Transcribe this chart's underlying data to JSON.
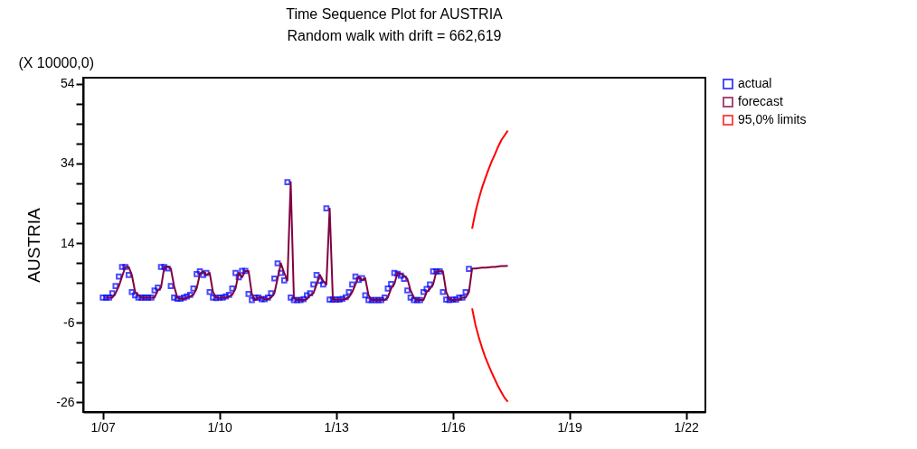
{
  "chart_data": {
    "type": "line",
    "title": "Time Sequence Plot for AUSTRIA",
    "subtitle": "Random walk with drift = 662,619",
    "ylabel": "AUSTRIA",
    "annotations": [
      "(X 10000,0)"
    ],
    "xlim": [
      "2006-07",
      "2022-07"
    ],
    "xticks": [
      {
        "value": "2007-01",
        "label": "1/07"
      },
      {
        "value": "2010-01",
        "label": "1/10"
      },
      {
        "value": "2013-01",
        "label": "1/13"
      },
      {
        "value": "2016-01",
        "label": "1/16"
      },
      {
        "value": "2019-01",
        "label": "1/19"
      },
      {
        "value": "2022-01",
        "label": "1/22"
      }
    ],
    "ylim": [
      -28.4,
      55.5
    ],
    "yticks": [
      -26,
      {
        "value": -21,
        "label": null
      },
      {
        "value": -16,
        "label": null
      },
      {
        "value": -11,
        "label": null
      },
      -6,
      {
        "value": -1,
        "label": null
      },
      {
        "value": 4,
        "label": null
      },
      {
        "value": 9,
        "label": null
      },
      14,
      {
        "value": 19,
        "label": null
      },
      {
        "value": 24,
        "label": null
      },
      {
        "value": 29,
        "label": null
      },
      34,
      {
        "value": 39,
        "label": null
      },
      {
        "value": 44,
        "label": null
      },
      {
        "value": 49,
        "label": null
      },
      54
    ],
    "grid": false,
    "legend": "top right",
    "series": [
      {
        "name": "actual",
        "type": "scatter",
        "marker": "square",
        "color": "#0000ff",
        "x": [
          "2007-01",
          "2007-02",
          "2007-03",
          "2007-04",
          "2007-05",
          "2007-06",
          "2007-07",
          "2007-08",
          "2007-09",
          "2007-10",
          "2007-11",
          "2007-12",
          "2008-01",
          "2008-02",
          "2008-03",
          "2008-04",
          "2008-05",
          "2008-06",
          "2008-07",
          "2008-08",
          "2008-09",
          "2008-10",
          "2008-11",
          "2008-12",
          "2009-01",
          "2009-02",
          "2009-03",
          "2009-04",
          "2009-05",
          "2009-06",
          "2009-07",
          "2009-08",
          "2009-09",
          "2009-10",
          "2009-11",
          "2009-12",
          "2010-01",
          "2010-02",
          "2010-03",
          "2010-04",
          "2010-05",
          "2010-06",
          "2010-07",
          "2010-08",
          "2010-09",
          "2010-10",
          "2010-11",
          "2010-12",
          "2011-01",
          "2011-02",
          "2011-03",
          "2011-04",
          "2011-05",
          "2011-06",
          "2011-07",
          "2011-08",
          "2011-09",
          "2011-10",
          "2011-11",
          "2011-12",
          "2012-01",
          "2012-02",
          "2012-03",
          "2012-04",
          "2012-05",
          "2012-06",
          "2012-07",
          "2012-08",
          "2012-09",
          "2012-10",
          "2012-11",
          "2012-12",
          "2013-01",
          "2013-02",
          "2013-03",
          "2013-04",
          "2013-05",
          "2013-06",
          "2013-07",
          "2013-08",
          "2013-09",
          "2013-10",
          "2013-11",
          "2013-12",
          "2014-01",
          "2014-02",
          "2014-03",
          "2014-04",
          "2014-05",
          "2014-06",
          "2014-07",
          "2014-08",
          "2014-09",
          "2014-10",
          "2014-11",
          "2014-12",
          "2015-01",
          "2015-02",
          "2015-03",
          "2015-04",
          "2015-05",
          "2015-06",
          "2015-07",
          "2015-08",
          "2015-09",
          "2015-10",
          "2015-11",
          "2015-12",
          "2016-01",
          "2016-02",
          "2016-03",
          "2016-04",
          "2016-05",
          "2016-06"
        ],
        "values": [
          0.3,
          0.3,
          0.3,
          1.4,
          3.2,
          5.6,
          8.0,
          8.0,
          6.0,
          1.7,
          0.9,
          0.3,
          0.3,
          0.3,
          0.3,
          0.3,
          2.1,
          2.8,
          8.0,
          8.0,
          7.6,
          3.2,
          0.3,
          0.0,
          0.0,
          0.3,
          0.6,
          1.0,
          2.6,
          6.2,
          6.9,
          6.0,
          6.5,
          1.7,
          0.3,
          0.2,
          0.3,
          0.3,
          0.6,
          1.0,
          2.6,
          6.5,
          5.4,
          7.0,
          7.0,
          1.2,
          -0.3,
          0.3,
          0.3,
          -0.1,
          -0.1,
          0.3,
          1.4,
          5.1,
          8.9,
          6.5,
          4.6,
          29.3,
          0.3,
          -0.3,
          -0.3,
          -0.3,
          -0.1,
          0.9,
          1.4,
          3.6,
          6.0,
          4.5,
          3.6,
          22.7,
          -0.2,
          -0.2,
          -0.2,
          -0.2,
          0.0,
          0.4,
          1.7,
          3.6,
          5.6,
          4.7,
          5.2,
          0.9,
          -0.3,
          -0.3,
          -0.3,
          -0.3,
          -0.3,
          0.3,
          2.6,
          3.7,
          6.5,
          6.3,
          5.8,
          5.0,
          2.1,
          0.3,
          -0.3,
          -0.3,
          -0.3,
          1.7,
          2.5,
          3.6,
          6.9,
          6.9,
          6.9,
          1.7,
          -0.2,
          -0.3,
          -0.2,
          -0.2,
          0.3,
          0.3,
          1.7,
          7.5
        ]
      },
      {
        "name": "forecast",
        "line_style": "solid",
        "color": "#800040",
        "x": [
          "2007-02",
          "2007-03",
          "2007-04",
          "2007-05",
          "2007-06",
          "2007-07",
          "2007-08",
          "2007-09",
          "2007-10",
          "2007-11",
          "2007-12",
          "2008-01",
          "2008-02",
          "2008-03",
          "2008-04",
          "2008-05",
          "2008-06",
          "2008-07",
          "2008-08",
          "2008-09",
          "2008-10",
          "2008-11",
          "2008-12",
          "2009-01",
          "2009-02",
          "2009-03",
          "2009-04",
          "2009-05",
          "2009-06",
          "2009-07",
          "2009-08",
          "2009-09",
          "2009-10",
          "2009-11",
          "2009-12",
          "2010-01",
          "2010-02",
          "2010-03",
          "2010-04",
          "2010-05",
          "2010-06",
          "2010-07",
          "2010-08",
          "2010-09",
          "2010-10",
          "2010-11",
          "2010-12",
          "2011-01",
          "2011-02",
          "2011-03",
          "2011-04",
          "2011-05",
          "2011-06",
          "2011-07",
          "2011-08",
          "2011-09",
          "2011-10",
          "2011-11",
          "2011-12",
          "2012-01",
          "2012-02",
          "2012-03",
          "2012-04",
          "2012-05",
          "2012-06",
          "2012-07",
          "2012-08",
          "2012-09",
          "2012-10",
          "2012-11",
          "2012-12",
          "2013-01",
          "2013-02",
          "2013-03",
          "2013-04",
          "2013-05",
          "2013-06",
          "2013-07",
          "2013-08",
          "2013-09",
          "2013-10",
          "2013-11",
          "2013-12",
          "2014-01",
          "2014-02",
          "2014-03",
          "2014-04",
          "2014-05",
          "2014-06",
          "2014-07",
          "2014-08",
          "2014-09",
          "2014-10",
          "2014-11",
          "2014-12",
          "2015-01",
          "2015-02",
          "2015-03",
          "2015-04",
          "2015-05",
          "2015-06",
          "2015-07",
          "2015-08",
          "2015-09",
          "2015-10",
          "2015-11",
          "2015-12",
          "2016-01",
          "2016-02",
          "2016-03",
          "2016-04",
          "2016-05",
          "2016-06",
          "2016-07",
          "2016-08",
          "2016-09",
          "2016-10",
          "2016-11",
          "2016-12",
          "2017-01",
          "2017-02",
          "2017-03",
          "2017-04",
          "2017-05",
          "2017-06"
        ],
        "values": [
          0.3,
          0.3,
          0.3,
          1.4,
          3.2,
          5.6,
          8.0,
          8.0,
          6.0,
          1.7,
          0.9,
          0.3,
          0.3,
          0.3,
          0.3,
          0.3,
          2.1,
          2.8,
          8.0,
          8.0,
          7.6,
          3.2,
          0.3,
          0.0,
          0.0,
          0.3,
          0.6,
          1.0,
          2.6,
          6.2,
          6.9,
          6.0,
          6.5,
          1.7,
          0.3,
          0.2,
          0.3,
          0.3,
          0.6,
          1.0,
          2.6,
          6.5,
          5.4,
          7.0,
          7.0,
          1.2,
          -0.3,
          0.3,
          0.3,
          -0.1,
          -0.1,
          0.3,
          1.4,
          5.1,
          8.9,
          6.5,
          4.6,
          29.3,
          0.3,
          -0.3,
          -0.3,
          -0.3,
          -0.1,
          0.9,
          1.4,
          3.6,
          6.0,
          4.5,
          3.6,
          22.7,
          -0.2,
          -0.2,
          -0.2,
          -0.2,
          0.0,
          0.4,
          1.7,
          3.6,
          5.6,
          4.7,
          5.2,
          0.9,
          -0.3,
          -0.3,
          -0.3,
          -0.3,
          -0.3,
          0.3,
          2.6,
          3.7,
          6.5,
          6.3,
          5.8,
          5.0,
          2.1,
          0.3,
          -0.3,
          -0.3,
          -0.3,
          1.7,
          2.5,
          3.6,
          6.9,
          6.9,
          6.9,
          1.7,
          -0.2,
          -0.3,
          -0.2,
          -0.2,
          0.3,
          0.3,
          1.7,
          7.6,
          7.6,
          7.7,
          7.8,
          7.8,
          7.9,
          8.0,
          8.0,
          8.1,
          8.2,
          8.2,
          8.3
        ]
      },
      {
        "name": "95,0% limits",
        "line_style": "solid",
        "color": "#ff0000",
        "x": [
          "2016-07",
          "2016-08",
          "2016-09",
          "2016-10",
          "2016-11",
          "2016-12",
          "2017-01",
          "2017-02",
          "2017-03",
          "2017-04",
          "2017-05",
          "2017-06"
        ],
        "values": [
          17.6,
          21.7,
          25.0,
          27.8,
          30.2,
          32.4,
          34.5,
          36.3,
          38.1,
          39.8,
          41.0,
          42.2
        ]
      },
      {
        "line_style": "solid",
        "color": "#ff0000",
        "x": [
          "2016-07",
          "2016-08",
          "2016-09",
          "2016-10",
          "2016-11",
          "2016-12",
          "2017-01",
          "2017-02",
          "2017-03",
          "2017-04",
          "2017-05",
          "2017-06"
        ],
        "values": [
          -2.4,
          -6.5,
          -9.6,
          -12.2,
          -14.6,
          -16.6,
          -18.5,
          -20.3,
          -21.9,
          -23.4,
          -24.8,
          -25.8
        ]
      }
    ]
  }
}
